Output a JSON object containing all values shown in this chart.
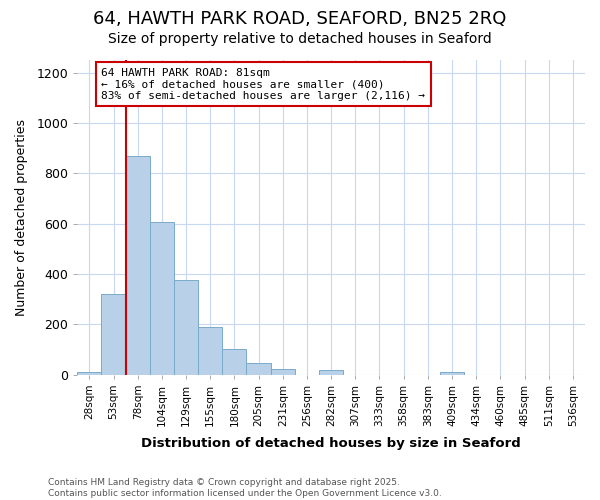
{
  "title": "64, HAWTH PARK ROAD, SEAFORD, BN25 2RQ",
  "subtitle": "Size of property relative to detached houses in Seaford",
  "xlabel": "Distribution of detached houses by size in Seaford",
  "ylabel": "Number of detached properties",
  "categories": [
    "28sqm",
    "53sqm",
    "78sqm",
    "104sqm",
    "129sqm",
    "155sqm",
    "180sqm",
    "205sqm",
    "231sqm",
    "256sqm",
    "282sqm",
    "307sqm",
    "333sqm",
    "358sqm",
    "383sqm",
    "409sqm",
    "434sqm",
    "460sqm",
    "485sqm",
    "511sqm",
    "536sqm"
  ],
  "values": [
    12,
    320,
    870,
    605,
    375,
    190,
    103,
    45,
    22,
    0,
    20,
    0,
    0,
    0,
    0,
    10,
    0,
    0,
    0,
    0,
    0
  ],
  "bar_color": "#b8d0e8",
  "bar_edge_color": "#7aaac8",
  "vline_x_index": 2,
  "vline_color": "#cc0000",
  "annotation_text": "64 HAWTH PARK ROAD: 81sqm\n← 16% of detached houses are smaller (400)\n83% of semi-detached houses are larger (2,116) →",
  "annotation_box_edgecolor": "#cc0000",
  "ylim": [
    0,
    1250
  ],
  "yticks": [
    0,
    200,
    400,
    600,
    800,
    1000,
    1200
  ],
  "footer": "Contains HM Land Registry data © Crown copyright and database right 2025.\nContains public sector information licensed under the Open Government Licence v3.0.",
  "bg_color": "#ffffff",
  "plot_bg_color": "#ffffff",
  "grid_color": "#c8d8f0",
  "title_fontsize": 13,
  "subtitle_fontsize": 10
}
